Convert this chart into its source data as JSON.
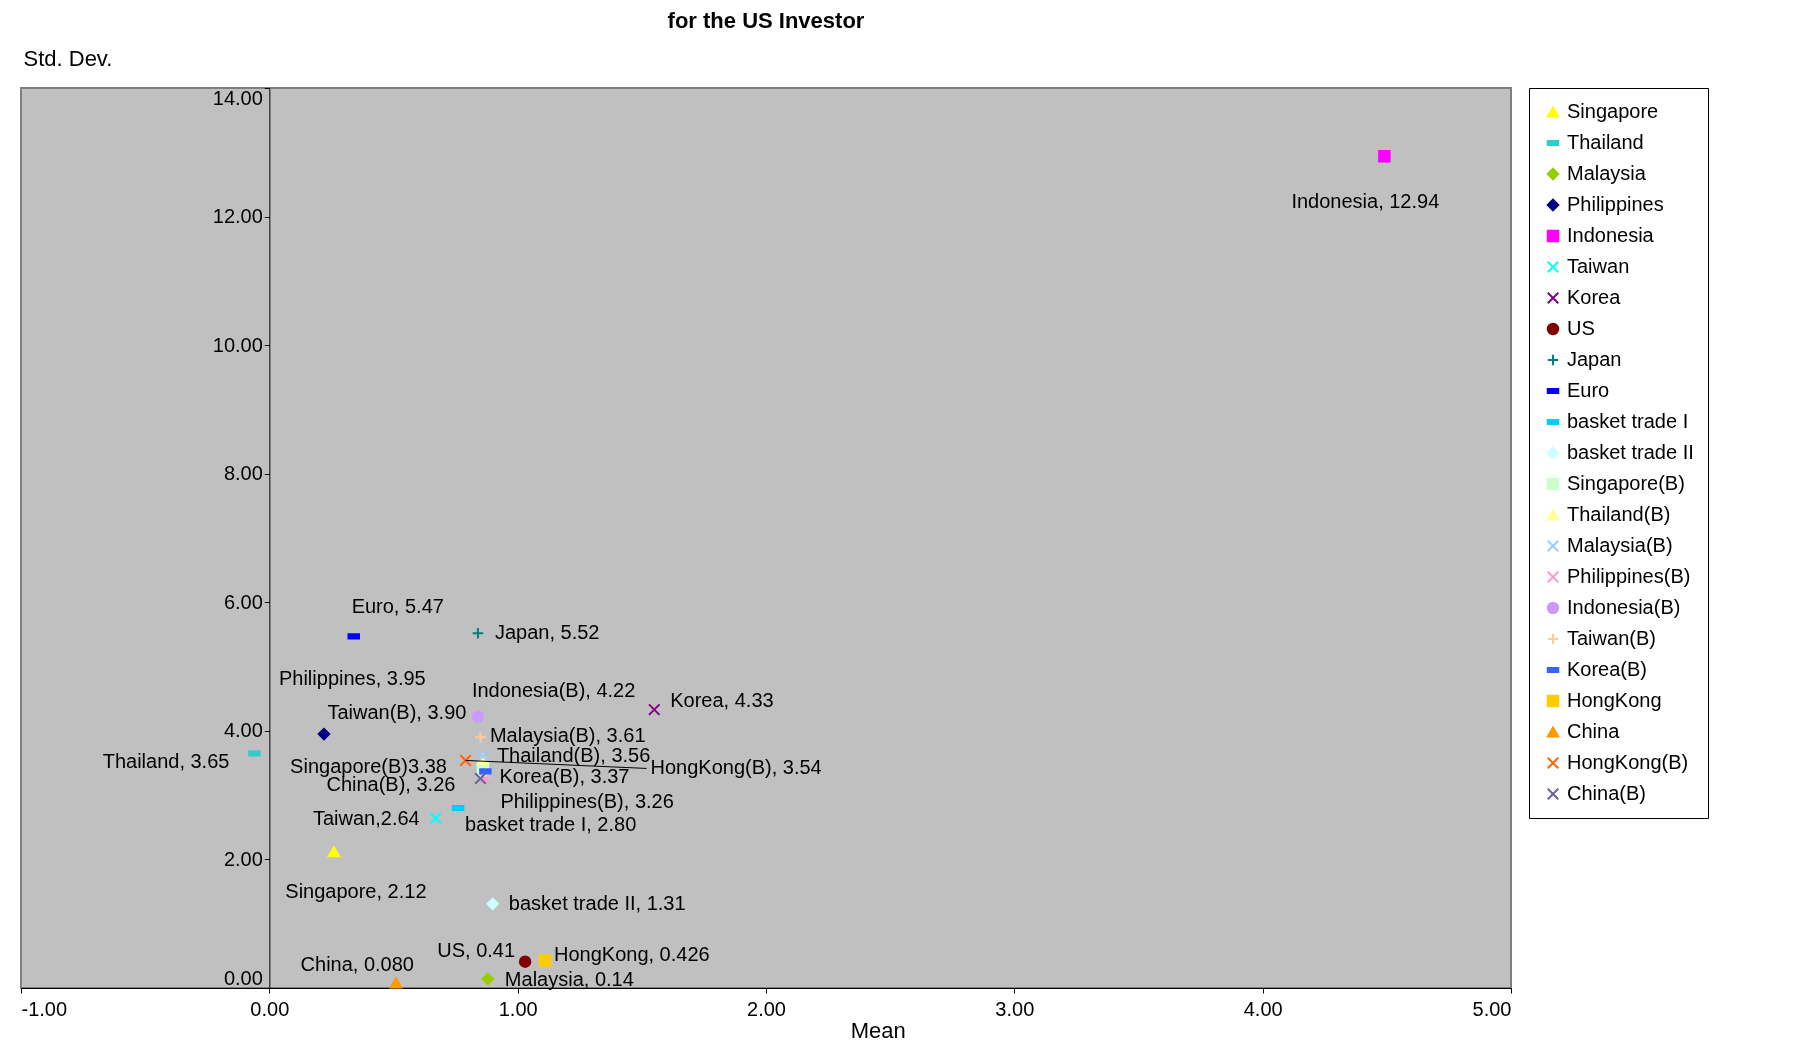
{
  "chart_data": {
    "type": "scatter",
    "title": "for the US Investor",
    "xlabel": "Mean",
    "ylabel": "Std. Dev.",
    "xlim": [
      -1,
      5
    ],
    "ylim": [
      0,
      14
    ],
    "xticks": [
      {
        "value": -1,
        "label": "-1.00"
      },
      {
        "value": 0,
        "label": "0.00"
      },
      {
        "value": 1,
        "label": "1.00"
      },
      {
        "value": 2,
        "label": "2.00"
      },
      {
        "value": 3,
        "label": "3.00"
      },
      {
        "value": 4,
        "label": "4.00"
      },
      {
        "value": 5,
        "label": "5.00"
      }
    ],
    "yticks": [
      {
        "value": 0,
        "label": "0.00"
      },
      {
        "value": 2,
        "label": "2.00"
      },
      {
        "value": 4,
        "label": "4.00"
      },
      {
        "value": 6,
        "label": "6.00"
      },
      {
        "value": 8,
        "label": "8.00"
      },
      {
        "value": 10,
        "label": "10.00"
      },
      {
        "value": 12,
        "label": "12.00"
      },
      {
        "value": 14,
        "label": "14.00"
      }
    ],
    "grid": false,
    "legend": "right",
    "series": [
      {
        "name": "Singapore",
        "color": "#ffff00",
        "marker": "triangle",
        "x": [
          0.26
        ],
        "values": [
          2.12
        ]
      },
      {
        "name": "Thailand",
        "color": "#33cccc",
        "x": [
          -0.06
        ],
        "values": [
          3.65
        ]
      },
      {
        "name": "Malaysia",
        "color": "#99cc00",
        "marker": "diamond",
        "x": [
          0.88
        ],
        "values": [
          0.14
        ]
      },
      {
        "name": "Philippines",
        "color": "#000080",
        "marker": "diamond",
        "x": [
          0.22
        ],
        "values": [
          3.95
        ]
      },
      {
        "name": "Indonesia",
        "color": "#ff00ff",
        "marker": "square",
        "x": [
          4.49
        ],
        "values": [
          12.94
        ]
      },
      {
        "name": "Taiwan",
        "color": "#00ffff",
        "marker": "cross",
        "x": [
          0.67
        ],
        "values": [
          2.64
        ]
      },
      {
        "name": "Korea",
        "color": "#800080",
        "marker": "cross",
        "x": [
          1.55
        ],
        "values": [
          4.33
        ]
      },
      {
        "name": "US",
        "color": "#800000",
        "marker": "circle",
        "x": [
          1.03
        ],
        "values": [
          0.41
        ]
      },
      {
        "name": "Japan",
        "color": "#008080",
        "marker": "plus",
        "x": [
          0.84
        ],
        "values": [
          5.52
        ]
      },
      {
        "name": "Euro",
        "color": "#0000ff",
        "x": [
          0.34
        ],
        "values": [
          5.47
        ]
      },
      {
        "name": "basket trade I",
        "color": "#00ccff",
        "x": [
          0.76
        ],
        "values": [
          2.8
        ]
      },
      {
        "name": "basket trade II",
        "color": "#ccffff",
        "marker": "diamond",
        "x": [
          0.9
        ],
        "values": [
          1.31
        ]
      },
      {
        "name": "Singapore(B)",
        "color": "#ccffcc",
        "marker": "square",
        "x": [
          0.86
        ],
        "values": [
          3.38
        ]
      },
      {
        "name": "Thailand(B)",
        "color": "#ffff99",
        "marker": "triangle",
        "x": [
          0.86
        ],
        "values": [
          3.56
        ]
      },
      {
        "name": "Malaysia(B)",
        "color": "#99ccff",
        "marker": "cross",
        "x": [
          0.86
        ],
        "values": [
          3.61
        ]
      },
      {
        "name": "Philippines(B)",
        "color": "#ff99cc",
        "marker": "cross",
        "x": [
          0.87
        ],
        "values": [
          3.26
        ]
      },
      {
        "name": "Indonesia(B)",
        "color": "#cc99ff",
        "marker": "circle",
        "x": [
          0.84
        ],
        "values": [
          4.22
        ]
      },
      {
        "name": "Taiwan(B)",
        "color": "#ffcc99",
        "marker": "plus",
        "x": [
          0.85
        ],
        "values": [
          3.9
        ]
      },
      {
        "name": "Korea(B)",
        "color": "#3366ff",
        "x": [
          0.87
        ],
        "values": [
          3.37
        ]
      },
      {
        "name": "HongKong",
        "color": "#ffcc00",
        "marker": "square",
        "x": [
          1.11
        ],
        "values": [
          0.426
        ]
      },
      {
        "name": "China",
        "color": "#ff9900",
        "marker": "triangle",
        "x": [
          0.51
        ],
        "values": [
          0.08
        ]
      },
      {
        "name": "HongKong(B)",
        "color": "#ff6600",
        "marker": "cross",
        "x": [
          0.79
        ],
        "values": [
          3.54
        ]
      },
      {
        "name": "China(B)",
        "color": "#666699",
        "marker": "cross",
        "x": [
          0.85
        ],
        "values": [
          3.26
        ]
      }
    ],
    "annotations": [
      {
        "text": "Singapore, 2.12",
        "x": 0.26,
        "y": 2.12
      },
      {
        "text": "Thailand, 3.65",
        "x": -0.06,
        "y": 3.65
      },
      {
        "text": "Malaysia, 0.14",
        "x": 0.88,
        "y": 0.14
      },
      {
        "text": "Philippines, 3.95",
        "x": 0.22,
        "y": 3.95
      },
      {
        "text": "Indonesia, 12.94",
        "x": 4.49,
        "y": 12.94
      },
      {
        "text": "Taiwan,2.64",
        "x": 0.67,
        "y": 2.64
      },
      {
        "text": "Korea, 4.33",
        "x": 1.55,
        "y": 4.33
      },
      {
        "text": "US, 0.41",
        "x": 1.03,
        "y": 0.41
      },
      {
        "text": "Japan, 5.52",
        "x": 0.84,
        "y": 5.52
      },
      {
        "text": "Euro, 5.47",
        "x": 0.34,
        "y": 5.47
      },
      {
        "text": "basket trade I, 2.80",
        "x": 0.76,
        "y": 2.8
      },
      {
        "text": "basket trade II, 1.31",
        "x": 0.9,
        "y": 1.31
      },
      {
        "text": "Singapore(B)3.38",
        "x": 0.86,
        "y": 3.38
      },
      {
        "text": "Thailand(B), 3.56",
        "x": 0.86,
        "y": 3.56
      },
      {
        "text": "Malaysia(B), 3.61",
        "x": 0.86,
        "y": 3.61
      },
      {
        "text": "Philippines(B), 3.26",
        "x": 0.87,
        "y": 3.26
      },
      {
        "text": "Indonesia(B), 4.22",
        "x": 0.84,
        "y": 4.22
      },
      {
        "text": "Taiwan(B), 3.90",
        "x": 0.85,
        "y": 3.9
      },
      {
        "text": "Korea(B), 3.37",
        "x": 0.87,
        "y": 3.37
      },
      {
        "text": "HongKong, 0.426",
        "x": 1.11,
        "y": 0.426
      },
      {
        "text": "China, 0.080",
        "x": 0.51,
        "y": 0.08
      },
      {
        "text": "HongKong(B), 3.54",
        "x": 0.79,
        "y": 3.54
      },
      {
        "text": "China(B), 3.26",
        "x": 0.85,
        "y": 3.26
      }
    ]
  }
}
